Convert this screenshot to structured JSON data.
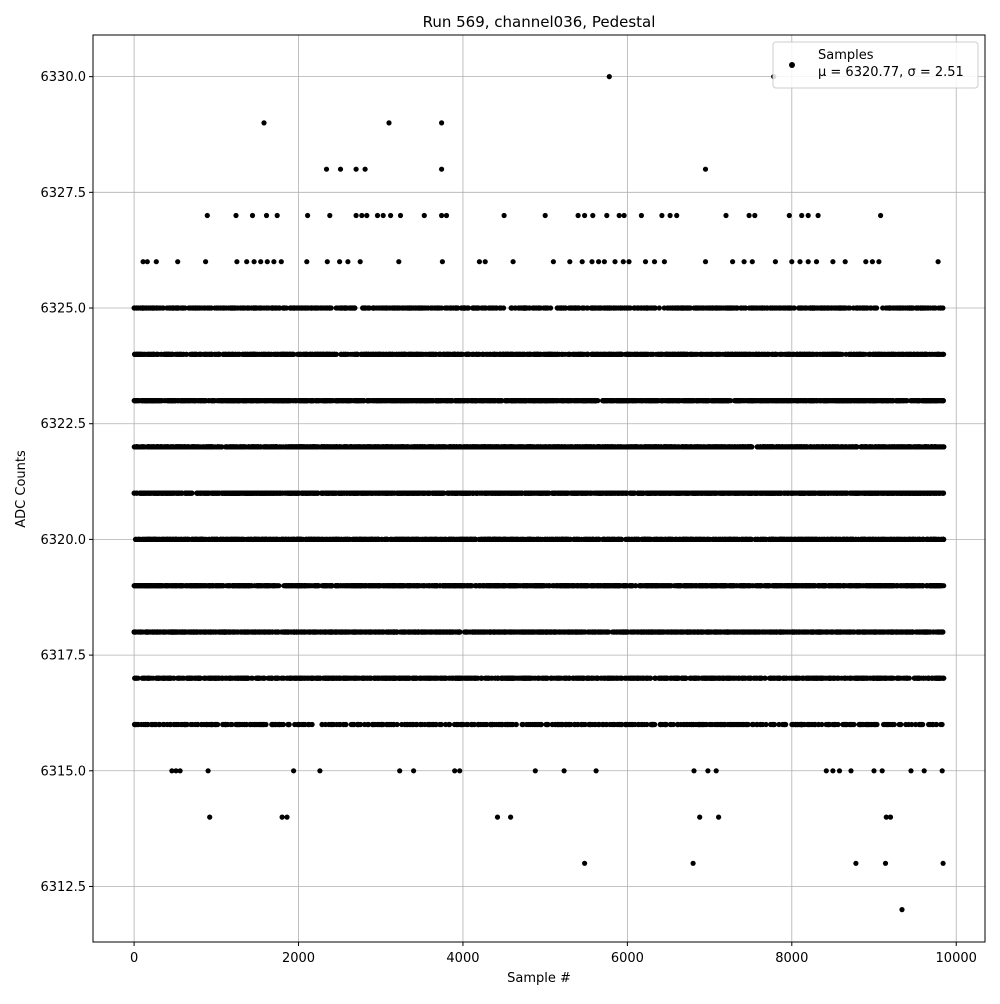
{
  "chart_data": {
    "type": "scatter",
    "title": "Run 569, channel036, Pedestal",
    "xlabel": "Sample #",
    "ylabel": "ADC Counts",
    "xlim": [
      -500,
      10350
    ],
    "ylim": [
      6311.3,
      6330.9
    ],
    "xticks": [
      0,
      2000,
      4000,
      6000,
      8000,
      10000
    ],
    "xtick_labels": [
      "0",
      "2000",
      "4000",
      "6000",
      "8000",
      "10000"
    ],
    "yticks": [
      6312.5,
      6315.0,
      6317.5,
      6320.0,
      6322.5,
      6325.0,
      6327.5,
      6330.0
    ],
    "ytick_labels": [
      "6312.5",
      "6315.0",
      "6317.5",
      "6320.0",
      "6322.5",
      "6325.0",
      "6327.5",
      "6330.0"
    ],
    "grid": true,
    "legend": {
      "placement": "top-right",
      "label": "Samples",
      "stats": "μ = 6320.77, σ = 2.51"
    },
    "series": [
      {
        "name": "Samples",
        "color": "#000000",
        "x_range": [
          0,
          9850
        ],
        "levels": [
          {
            "y": 6316,
            "points": 600
          },
          {
            "y": 6317,
            "points": 1100
          },
          {
            "y": 6318,
            "points": 1500
          },
          {
            "y": 6319,
            "points": 1600
          },
          {
            "y": 6320,
            "points": 1600
          },
          {
            "y": 6321,
            "points": 1600
          },
          {
            "y": 6322,
            "points": 1600
          },
          {
            "y": 6323,
            "points": 1500
          },
          {
            "y": 6324,
            "points": 1300
          },
          {
            "y": 6325,
            "points": 900
          }
        ],
        "sparse_points": [
          {
            "x": 5780,
            "y": 6330
          },
          {
            "x": 7780,
            "y": 6330
          },
          {
            "x": 1580,
            "y": 6329
          },
          {
            "x": 3100,
            "y": 6329
          },
          {
            "x": 3740,
            "y": 6329
          },
          {
            "x": 2340,
            "y": 6328
          },
          {
            "x": 2510,
            "y": 6328
          },
          {
            "x": 2700,
            "y": 6328
          },
          {
            "x": 2810,
            "y": 6328
          },
          {
            "x": 3740,
            "y": 6328
          },
          {
            "x": 6950,
            "y": 6328
          },
          {
            "x": 890,
            "y": 6327
          },
          {
            "x": 1240,
            "y": 6327
          },
          {
            "x": 1440,
            "y": 6327
          },
          {
            "x": 1610,
            "y": 6327
          },
          {
            "x": 1740,
            "y": 6327
          },
          {
            "x": 2110,
            "y": 6327
          },
          {
            "x": 2380,
            "y": 6327
          },
          {
            "x": 2700,
            "y": 6327
          },
          {
            "x": 2770,
            "y": 6327
          },
          {
            "x": 2830,
            "y": 6327
          },
          {
            "x": 2960,
            "y": 6327
          },
          {
            "x": 3030,
            "y": 6327
          },
          {
            "x": 3120,
            "y": 6327
          },
          {
            "x": 3240,
            "y": 6327
          },
          {
            "x": 3530,
            "y": 6327
          },
          {
            "x": 3740,
            "y": 6327
          },
          {
            "x": 3800,
            "y": 6327
          },
          {
            "x": 4500,
            "y": 6327
          },
          {
            "x": 5000,
            "y": 6327
          },
          {
            "x": 5400,
            "y": 6327
          },
          {
            "x": 5480,
            "y": 6327
          },
          {
            "x": 5580,
            "y": 6327
          },
          {
            "x": 5750,
            "y": 6327
          },
          {
            "x": 5900,
            "y": 6327
          },
          {
            "x": 5960,
            "y": 6327
          },
          {
            "x": 6170,
            "y": 6327
          },
          {
            "x": 6420,
            "y": 6327
          },
          {
            "x": 6520,
            "y": 6327
          },
          {
            "x": 6600,
            "y": 6327
          },
          {
            "x": 7200,
            "y": 6327
          },
          {
            "x": 7480,
            "y": 6327
          },
          {
            "x": 7550,
            "y": 6327
          },
          {
            "x": 7970,
            "y": 6327
          },
          {
            "x": 8120,
            "y": 6327
          },
          {
            "x": 8200,
            "y": 6327
          },
          {
            "x": 8320,
            "y": 6327
          },
          {
            "x": 9080,
            "y": 6327
          },
          {
            "x": 110,
            "y": 6326
          },
          {
            "x": 160,
            "y": 6326
          },
          {
            "x": 270,
            "y": 6326
          },
          {
            "x": 530,
            "y": 6326
          },
          {
            "x": 870,
            "y": 6326
          },
          {
            "x": 1250,
            "y": 6326
          },
          {
            "x": 1370,
            "y": 6326
          },
          {
            "x": 1460,
            "y": 6326
          },
          {
            "x": 1540,
            "y": 6326
          },
          {
            "x": 1620,
            "y": 6326
          },
          {
            "x": 1700,
            "y": 6326
          },
          {
            "x": 1790,
            "y": 6326
          },
          {
            "x": 2100,
            "y": 6326
          },
          {
            "x": 2350,
            "y": 6326
          },
          {
            "x": 2500,
            "y": 6326
          },
          {
            "x": 2600,
            "y": 6326
          },
          {
            "x": 2750,
            "y": 6326
          },
          {
            "x": 3220,
            "y": 6326
          },
          {
            "x": 3750,
            "y": 6326
          },
          {
            "x": 4200,
            "y": 6326
          },
          {
            "x": 4270,
            "y": 6326
          },
          {
            "x": 4610,
            "y": 6326
          },
          {
            "x": 5100,
            "y": 6326
          },
          {
            "x": 5300,
            "y": 6326
          },
          {
            "x": 5450,
            "y": 6326
          },
          {
            "x": 5570,
            "y": 6326
          },
          {
            "x": 5650,
            "y": 6326
          },
          {
            "x": 5720,
            "y": 6326
          },
          {
            "x": 5850,
            "y": 6326
          },
          {
            "x": 5950,
            "y": 6326
          },
          {
            "x": 6020,
            "y": 6326
          },
          {
            "x": 6220,
            "y": 6326
          },
          {
            "x": 6330,
            "y": 6326
          },
          {
            "x": 6450,
            "y": 6326
          },
          {
            "x": 6950,
            "y": 6326
          },
          {
            "x": 7280,
            "y": 6326
          },
          {
            "x": 7420,
            "y": 6326
          },
          {
            "x": 7520,
            "y": 6326
          },
          {
            "x": 7800,
            "y": 6326
          },
          {
            "x": 8000,
            "y": 6326
          },
          {
            "x": 8100,
            "y": 6326
          },
          {
            "x": 8200,
            "y": 6326
          },
          {
            "x": 8300,
            "y": 6326
          },
          {
            "x": 8500,
            "y": 6326
          },
          {
            "x": 8650,
            "y": 6326
          },
          {
            "x": 8900,
            "y": 6326
          },
          {
            "x": 8980,
            "y": 6326
          },
          {
            "x": 9060,
            "y": 6326
          },
          {
            "x": 9780,
            "y": 6326
          },
          {
            "x": 460,
            "y": 6315
          },
          {
            "x": 510,
            "y": 6315
          },
          {
            "x": 560,
            "y": 6315
          },
          {
            "x": 900,
            "y": 6315
          },
          {
            "x": 1940,
            "y": 6315
          },
          {
            "x": 2260,
            "y": 6315
          },
          {
            "x": 3230,
            "y": 6315
          },
          {
            "x": 3400,
            "y": 6315
          },
          {
            "x": 3900,
            "y": 6315
          },
          {
            "x": 3960,
            "y": 6315
          },
          {
            "x": 4880,
            "y": 6315
          },
          {
            "x": 5230,
            "y": 6315
          },
          {
            "x": 5620,
            "y": 6315
          },
          {
            "x": 6810,
            "y": 6315
          },
          {
            "x": 6980,
            "y": 6315
          },
          {
            "x": 7080,
            "y": 6315
          },
          {
            "x": 8420,
            "y": 6315
          },
          {
            "x": 8500,
            "y": 6315
          },
          {
            "x": 8580,
            "y": 6315
          },
          {
            "x": 8720,
            "y": 6315
          },
          {
            "x": 9000,
            "y": 6315
          },
          {
            "x": 9100,
            "y": 6315
          },
          {
            "x": 9450,
            "y": 6315
          },
          {
            "x": 9610,
            "y": 6315
          },
          {
            "x": 9830,
            "y": 6315
          },
          {
            "x": 920,
            "y": 6314
          },
          {
            "x": 1800,
            "y": 6314
          },
          {
            "x": 1860,
            "y": 6314
          },
          {
            "x": 4420,
            "y": 6314
          },
          {
            "x": 4580,
            "y": 6314
          },
          {
            "x": 6880,
            "y": 6314
          },
          {
            "x": 7110,
            "y": 6314
          },
          {
            "x": 9150,
            "y": 6314
          },
          {
            "x": 9200,
            "y": 6314
          },
          {
            "x": 5480,
            "y": 6313
          },
          {
            "x": 6800,
            "y": 6313
          },
          {
            "x": 8780,
            "y": 6313
          },
          {
            "x": 9140,
            "y": 6313
          },
          {
            "x": 9840,
            "y": 6313
          },
          {
            "x": 9340,
            "y": 6312
          }
        ]
      }
    ]
  }
}
